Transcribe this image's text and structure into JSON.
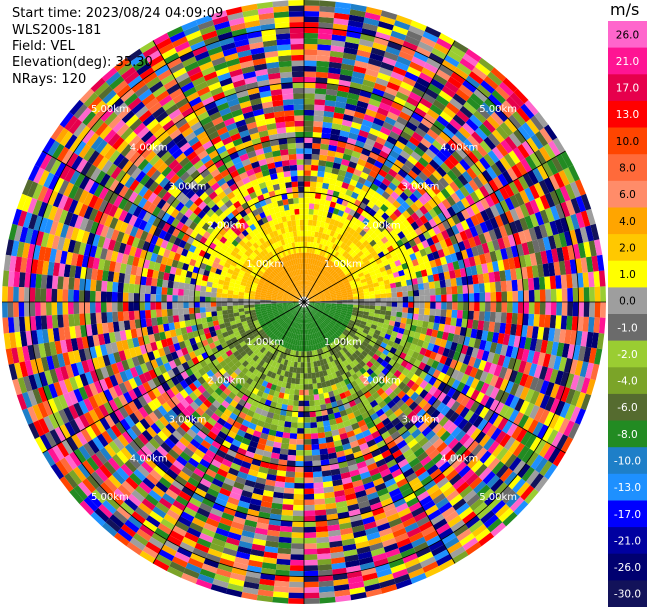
{
  "info": {
    "start_time": "Start time: 2023/08/24 04:09:09",
    "instrument": "WLS200s-181",
    "field": "Field: VEL",
    "elevation": "Elevation(deg): 35.30",
    "nrays": "NRays: 120"
  },
  "colorbar": {
    "unit": "m/s",
    "labels": [
      "26.0",
      "21.0",
      "17.0",
      "13.0",
      "10.0",
      "8.0",
      "6.0",
      "4.0",
      "2.0",
      "1.0",
      "0.0",
      "-1.0",
      "-2.0",
      "-4.0",
      "-6.0",
      "-8.0",
      "-10.0",
      "-13.0",
      "-17.0",
      "-21.0",
      "-26.0",
      "-30.0"
    ],
    "colors": [
      "#ff66cc",
      "#ff1493",
      "#e6004c",
      "#ff0000",
      "#ff4500",
      "#ff6a3a",
      "#ff8c69",
      "#ffa500",
      "#ffc800",
      "#ffff00",
      "#9e9e9e",
      "#6b6b6b",
      "#9acd32",
      "#7ba428",
      "#556b2f",
      "#228b22",
      "#1e7fc8",
      "#1e90ff",
      "#0000ff",
      "#0000a0",
      "#000070",
      "#12125a"
    ]
  },
  "chart_data": {
    "type": "heatmap",
    "projection": "polar-ppi",
    "field": "VEL",
    "units": "m/s",
    "nrays": 120,
    "elevation_deg": 35.3,
    "range_ring_labels": [
      "1.00km",
      "2.00km",
      "3.00km",
      "4.00km",
      "5.00km"
    ],
    "range_rings_km": [
      1,
      2,
      3,
      4,
      5
    ],
    "max_range_km": 5.5,
    "color_levels": [
      30,
      -30
    ]
  }
}
